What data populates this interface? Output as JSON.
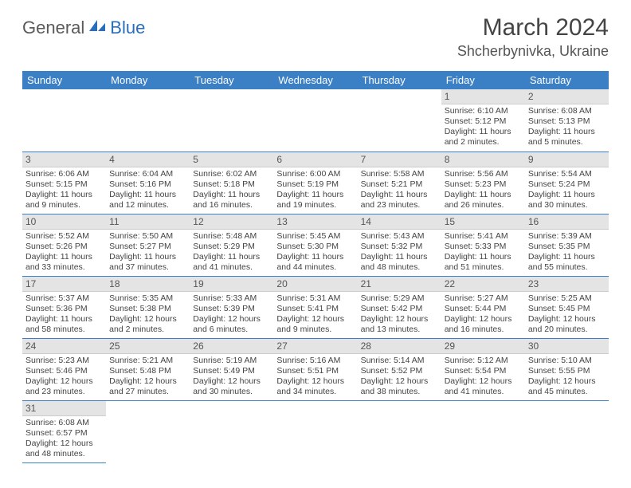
{
  "brand": {
    "part1": "General",
    "part2": "Blue",
    "part1_color": "#5a5a5a",
    "part2_color": "#2a6ebb"
  },
  "title": "March 2024",
  "location": "Shcherbynivka, Ukraine",
  "header_bg": "#3b7fc4",
  "header_fg": "#ffffff",
  "daynum_bg": "#e4e4e4",
  "row_border": "#3b7fc4",
  "weekdays": [
    "Sunday",
    "Monday",
    "Tuesday",
    "Wednesday",
    "Thursday",
    "Friday",
    "Saturday"
  ],
  "weeks": [
    [
      null,
      null,
      null,
      null,
      null,
      {
        "n": "1",
        "sr": "Sunrise: 6:10 AM",
        "ss": "Sunset: 5:12 PM",
        "dl1": "Daylight: 11 hours",
        "dl2": "and 2 minutes."
      },
      {
        "n": "2",
        "sr": "Sunrise: 6:08 AM",
        "ss": "Sunset: 5:13 PM",
        "dl1": "Daylight: 11 hours",
        "dl2": "and 5 minutes."
      }
    ],
    [
      {
        "n": "3",
        "sr": "Sunrise: 6:06 AM",
        "ss": "Sunset: 5:15 PM",
        "dl1": "Daylight: 11 hours",
        "dl2": "and 9 minutes."
      },
      {
        "n": "4",
        "sr": "Sunrise: 6:04 AM",
        "ss": "Sunset: 5:16 PM",
        "dl1": "Daylight: 11 hours",
        "dl2": "and 12 minutes."
      },
      {
        "n": "5",
        "sr": "Sunrise: 6:02 AM",
        "ss": "Sunset: 5:18 PM",
        "dl1": "Daylight: 11 hours",
        "dl2": "and 16 minutes."
      },
      {
        "n": "6",
        "sr": "Sunrise: 6:00 AM",
        "ss": "Sunset: 5:19 PM",
        "dl1": "Daylight: 11 hours",
        "dl2": "and 19 minutes."
      },
      {
        "n": "7",
        "sr": "Sunrise: 5:58 AM",
        "ss": "Sunset: 5:21 PM",
        "dl1": "Daylight: 11 hours",
        "dl2": "and 23 minutes."
      },
      {
        "n": "8",
        "sr": "Sunrise: 5:56 AM",
        "ss": "Sunset: 5:23 PM",
        "dl1": "Daylight: 11 hours",
        "dl2": "and 26 minutes."
      },
      {
        "n": "9",
        "sr": "Sunrise: 5:54 AM",
        "ss": "Sunset: 5:24 PM",
        "dl1": "Daylight: 11 hours",
        "dl2": "and 30 minutes."
      }
    ],
    [
      {
        "n": "10",
        "sr": "Sunrise: 5:52 AM",
        "ss": "Sunset: 5:26 PM",
        "dl1": "Daylight: 11 hours",
        "dl2": "and 33 minutes."
      },
      {
        "n": "11",
        "sr": "Sunrise: 5:50 AM",
        "ss": "Sunset: 5:27 PM",
        "dl1": "Daylight: 11 hours",
        "dl2": "and 37 minutes."
      },
      {
        "n": "12",
        "sr": "Sunrise: 5:48 AM",
        "ss": "Sunset: 5:29 PM",
        "dl1": "Daylight: 11 hours",
        "dl2": "and 41 minutes."
      },
      {
        "n": "13",
        "sr": "Sunrise: 5:45 AM",
        "ss": "Sunset: 5:30 PM",
        "dl1": "Daylight: 11 hours",
        "dl2": "and 44 minutes."
      },
      {
        "n": "14",
        "sr": "Sunrise: 5:43 AM",
        "ss": "Sunset: 5:32 PM",
        "dl1": "Daylight: 11 hours",
        "dl2": "and 48 minutes."
      },
      {
        "n": "15",
        "sr": "Sunrise: 5:41 AM",
        "ss": "Sunset: 5:33 PM",
        "dl1": "Daylight: 11 hours",
        "dl2": "and 51 minutes."
      },
      {
        "n": "16",
        "sr": "Sunrise: 5:39 AM",
        "ss": "Sunset: 5:35 PM",
        "dl1": "Daylight: 11 hours",
        "dl2": "and 55 minutes."
      }
    ],
    [
      {
        "n": "17",
        "sr": "Sunrise: 5:37 AM",
        "ss": "Sunset: 5:36 PM",
        "dl1": "Daylight: 11 hours",
        "dl2": "and 58 minutes."
      },
      {
        "n": "18",
        "sr": "Sunrise: 5:35 AM",
        "ss": "Sunset: 5:38 PM",
        "dl1": "Daylight: 12 hours",
        "dl2": "and 2 minutes."
      },
      {
        "n": "19",
        "sr": "Sunrise: 5:33 AM",
        "ss": "Sunset: 5:39 PM",
        "dl1": "Daylight: 12 hours",
        "dl2": "and 6 minutes."
      },
      {
        "n": "20",
        "sr": "Sunrise: 5:31 AM",
        "ss": "Sunset: 5:41 PM",
        "dl1": "Daylight: 12 hours",
        "dl2": "and 9 minutes."
      },
      {
        "n": "21",
        "sr": "Sunrise: 5:29 AM",
        "ss": "Sunset: 5:42 PM",
        "dl1": "Daylight: 12 hours",
        "dl2": "and 13 minutes."
      },
      {
        "n": "22",
        "sr": "Sunrise: 5:27 AM",
        "ss": "Sunset: 5:44 PM",
        "dl1": "Daylight: 12 hours",
        "dl2": "and 16 minutes."
      },
      {
        "n": "23",
        "sr": "Sunrise: 5:25 AM",
        "ss": "Sunset: 5:45 PM",
        "dl1": "Daylight: 12 hours",
        "dl2": "and 20 minutes."
      }
    ],
    [
      {
        "n": "24",
        "sr": "Sunrise: 5:23 AM",
        "ss": "Sunset: 5:46 PM",
        "dl1": "Daylight: 12 hours",
        "dl2": "and 23 minutes."
      },
      {
        "n": "25",
        "sr": "Sunrise: 5:21 AM",
        "ss": "Sunset: 5:48 PM",
        "dl1": "Daylight: 12 hours",
        "dl2": "and 27 minutes."
      },
      {
        "n": "26",
        "sr": "Sunrise: 5:19 AM",
        "ss": "Sunset: 5:49 PM",
        "dl1": "Daylight: 12 hours",
        "dl2": "and 30 minutes."
      },
      {
        "n": "27",
        "sr": "Sunrise: 5:16 AM",
        "ss": "Sunset: 5:51 PM",
        "dl1": "Daylight: 12 hours",
        "dl2": "and 34 minutes."
      },
      {
        "n": "28",
        "sr": "Sunrise: 5:14 AM",
        "ss": "Sunset: 5:52 PM",
        "dl1": "Daylight: 12 hours",
        "dl2": "and 38 minutes."
      },
      {
        "n": "29",
        "sr": "Sunrise: 5:12 AM",
        "ss": "Sunset: 5:54 PM",
        "dl1": "Daylight: 12 hours",
        "dl2": "and 41 minutes."
      },
      {
        "n": "30",
        "sr": "Sunrise: 5:10 AM",
        "ss": "Sunset: 5:55 PM",
        "dl1": "Daylight: 12 hours",
        "dl2": "and 45 minutes."
      }
    ],
    [
      {
        "n": "31",
        "sr": "Sunrise: 6:08 AM",
        "ss": "Sunset: 6:57 PM",
        "dl1": "Daylight: 12 hours",
        "dl2": "and 48 minutes."
      },
      null,
      null,
      null,
      null,
      null,
      null
    ]
  ]
}
